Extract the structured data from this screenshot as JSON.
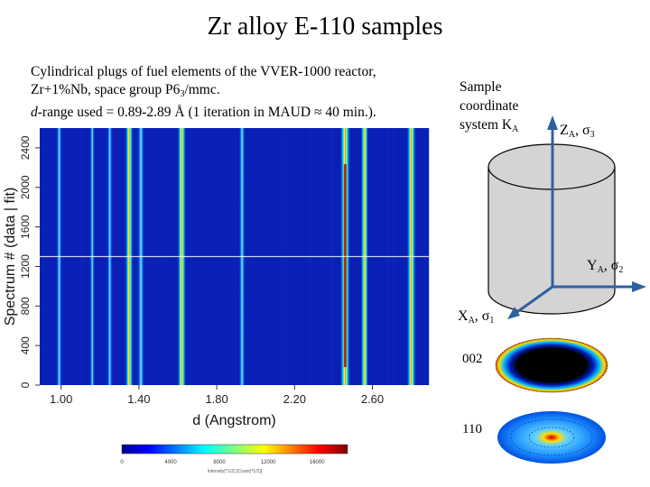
{
  "title": "Zr alloy E-110 samples",
  "description": {
    "line1": "Cylindrical plugs of fuel elements of the VVER-1000 reactor,",
    "line2_prefix": "Zr+1%Nb, space group P6",
    "line2_sub": "3",
    "line2_suffix": "/mmc.",
    "line3_italic": "d",
    "line3_rest": "-range used = 0.89-2.89 Å (1 iteration in MAUD ≈ 40 min.)."
  },
  "coordinate_system": {
    "line1": "Sample",
    "line2": "coordinate",
    "line3_prefix": "system K",
    "line3_sub": "A"
  },
  "axes": {
    "z": {
      "base": "Z",
      "sub": "A",
      "rest": ", σ",
      "sub2": "3"
    },
    "y": {
      "base": "Y",
      "sub": "A",
      "rest": ", σ",
      "sub2": "2"
    },
    "x": {
      "base": "X",
      "sub": "A",
      "rest": ", σ",
      "sub2": "1"
    }
  },
  "pole_figures": [
    {
      "label": "002"
    },
    {
      "label": "110"
    }
  ],
  "colors": {
    "cylinder_fill": "#d4d4d4",
    "map_background": "#0a1fb5",
    "peak_core": "#c80000"
  },
  "chart_data": {
    "type": "heatmap",
    "xlabel": "d (Angstrom)",
    "ylabel": "Spectrum # (data | fit)",
    "xlim": [
      0.89,
      2.89
    ],
    "ylim": [
      0,
      2600
    ],
    "x_ticks": [
      "1.00",
      "1.40",
      "1.80",
      "2.20",
      "2.60"
    ],
    "x_tick_values": [
      1.0,
      1.4,
      1.8,
      2.2,
      2.6
    ],
    "y_ticks": [
      "0",
      "400",
      "800",
      "1200",
      "1600",
      "2000",
      "2400"
    ],
    "y_tick_values": [
      0,
      400,
      800,
      1200,
      1600,
      2000,
      2400
    ],
    "peaks_d": [
      0.99,
      1.16,
      1.25,
      1.35,
      1.41,
      1.62,
      1.93,
      2.46,
      2.56,
      2.8
    ],
    "peak_intensity": [
      0.35,
      0.25,
      0.3,
      0.7,
      0.55,
      0.75,
      0.45,
      1.0,
      0.65,
      0.8
    ],
    "colorbar_ticks": [
      "0",
      "4000",
      "8000",
      "12000",
      "16000"
    ],
    "colorbar_tick_values": [
      0,
      4000,
      8000,
      12000,
      16000
    ],
    "colorbar_max": 18500,
    "colorbar_label": "Intensity(*1/2) [Count(*1/2)]"
  }
}
